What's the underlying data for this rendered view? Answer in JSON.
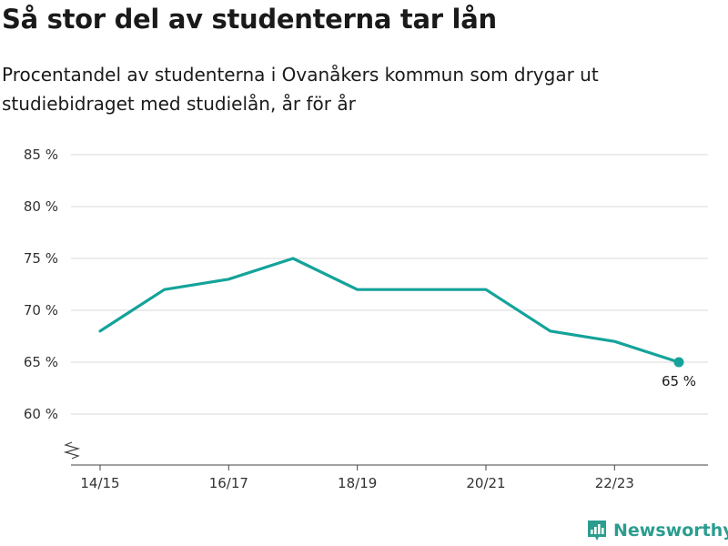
{
  "title": "Så stor del av studenterna tar lån",
  "subtitle": "Procentandel av studenterna i Ovanåkers kommun som drygar ut studiebidraget med studielån, år för år",
  "brand": {
    "name": "Newsworthy",
    "icon": "newsworthy-logo-icon",
    "color": "#2a9d8f"
  },
  "chart_data": {
    "type": "line",
    "title": "Så stor del av studenterna tar lån",
    "subtitle": "Procentandel av studenterna i Ovanåkers kommun som drygar ut studiebidraget med studielån, år för år",
    "xlabel": "",
    "ylabel": "",
    "x": [
      "14/15",
      "15/16",
      "16/17",
      "17/18",
      "18/19",
      "19/20",
      "20/21",
      "21/22",
      "22/23",
      "23/24"
    ],
    "x_tick_labels": [
      "14/15",
      "16/17",
      "18/19",
      "20/21",
      "22/23"
    ],
    "series": [
      {
        "values": [
          68,
          72,
          73,
          75,
          72,
          72,
          72,
          68,
          67,
          65
        ],
        "color": "#14a39a"
      }
    ],
    "y_ticks": [
      60,
      65,
      70,
      75,
      80,
      85
    ],
    "y_tick_labels": [
      "60 %",
      "65 %",
      "70 %",
      "75 %",
      "80 %",
      "85 %"
    ],
    "ylim": [
      55,
      85
    ],
    "y_axis_break": true,
    "grid": true,
    "last_point_label": "65 %"
  }
}
